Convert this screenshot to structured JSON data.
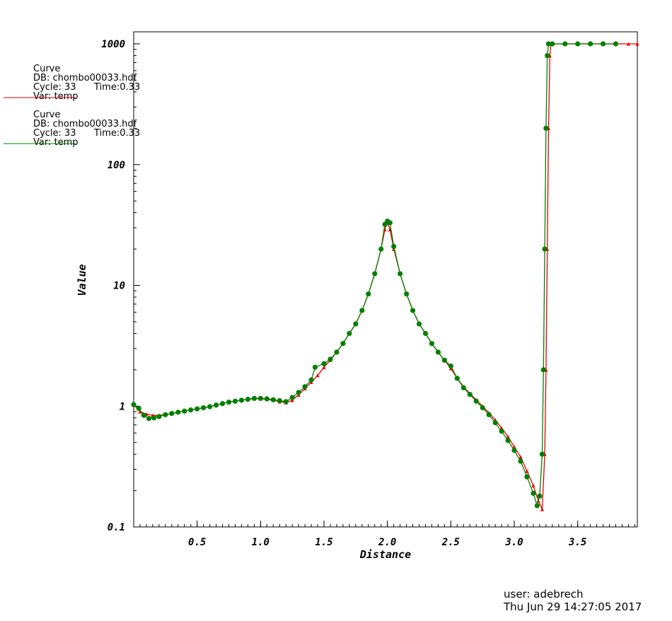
{
  "legend": [
    {
      "title": "Curve",
      "db": "DB: chombo00033.hdf",
      "cycle": "Cycle: 33",
      "time": "Time:0.33",
      "var": "Var: temp",
      "color": "#e60000"
    },
    {
      "title": "Curve",
      "db": "DB: chombo00033.hdf",
      "cycle": "Cycle: 33",
      "time": "Time:0.33",
      "var": "Var: temp",
      "color": "#008000"
    }
  ],
  "footer": {
    "user": "user: adebrech",
    "date": "Thu Jun 29 14:27:05 2017"
  },
  "chart_data": {
    "type": "line",
    "xlabel": "Distance",
    "ylabel": "Value",
    "x_scale": "linear",
    "y_scale": "log",
    "xlim": [
      0.0,
      3.97
    ],
    "ylim": [
      0.1,
      1200
    ],
    "x_ticks": [
      {
        "value": 0.5,
        "label": "0.5"
      },
      {
        "value": 1.0,
        "label": "1.0"
      },
      {
        "value": 1.5,
        "label": "1.5"
      },
      {
        "value": 2.0,
        "label": "2.0"
      },
      {
        "value": 2.5,
        "label": "2.5"
      },
      {
        "value": 3.0,
        "label": "3.0"
      },
      {
        "value": 3.5,
        "label": "3.5"
      }
    ],
    "y_ticks": [
      {
        "value": 0.1,
        "label": "0.1"
      },
      {
        "value": 1,
        "label": "1"
      },
      {
        "value": 10,
        "label": "10"
      },
      {
        "value": 100,
        "label": "100"
      },
      {
        "value": 1000,
        "label": "1000"
      }
    ],
    "series": [
      {
        "color": "#e60000",
        "marker": "triangle",
        "points": [
          [
            0.0,
            1.03
          ],
          [
            0.05,
            0.9
          ],
          [
            0.1,
            0.86
          ],
          [
            0.15,
            0.84
          ],
          [
            0.2,
            0.84
          ],
          [
            0.25,
            0.85
          ],
          [
            0.3,
            0.87
          ],
          [
            0.35,
            0.89
          ],
          [
            0.4,
            0.91
          ],
          [
            0.45,
            0.93
          ],
          [
            0.5,
            0.95
          ],
          [
            0.55,
            0.97
          ],
          [
            0.6,
            0.99
          ],
          [
            0.65,
            1.02
          ],
          [
            0.7,
            1.05
          ],
          [
            0.75,
            1.08
          ],
          [
            0.8,
            1.1
          ],
          [
            0.85,
            1.12
          ],
          [
            0.9,
            1.14
          ],
          [
            0.95,
            1.15
          ],
          [
            1.0,
            1.15
          ],
          [
            1.05,
            1.14
          ],
          [
            1.1,
            1.12
          ],
          [
            1.15,
            1.09
          ],
          [
            1.2,
            1.07
          ],
          [
            1.25,
            1.12
          ],
          [
            1.3,
            1.24
          ],
          [
            1.35,
            1.4
          ],
          [
            1.4,
            1.58
          ],
          [
            1.45,
            1.8
          ],
          [
            1.5,
            2.1
          ],
          [
            1.55,
            2.4
          ],
          [
            1.6,
            2.8
          ],
          [
            1.65,
            3.3
          ],
          [
            1.7,
            4.0
          ],
          [
            1.75,
            4.8
          ],
          [
            1.8,
            6.2
          ],
          [
            1.85,
            8.5
          ],
          [
            1.9,
            12.5
          ],
          [
            1.95,
            20
          ],
          [
            1.98,
            29
          ],
          [
            2.0,
            33
          ],
          [
            2.02,
            29
          ],
          [
            2.05,
            20
          ],
          [
            2.1,
            12.5
          ],
          [
            2.15,
            8.5
          ],
          [
            2.2,
            6.2
          ],
          [
            2.25,
            4.8
          ],
          [
            2.3,
            4.0
          ],
          [
            2.35,
            3.3
          ],
          [
            2.4,
            2.8
          ],
          [
            2.45,
            2.4
          ],
          [
            2.5,
            2.05
          ],
          [
            2.55,
            1.7
          ],
          [
            2.6,
            1.45
          ],
          [
            2.65,
            1.27
          ],
          [
            2.7,
            1.13
          ],
          [
            2.75,
            1.0
          ],
          [
            2.8,
            0.88
          ],
          [
            2.85,
            0.77
          ],
          [
            2.9,
            0.66
          ],
          [
            2.95,
            0.56
          ],
          [
            3.0,
            0.46
          ],
          [
            3.05,
            0.38
          ],
          [
            3.1,
            0.29
          ],
          [
            3.15,
            0.22
          ],
          [
            3.19,
            0.165
          ],
          [
            3.22,
            0.14
          ],
          [
            3.24,
            0.4
          ],
          [
            3.25,
            2
          ],
          [
            3.26,
            20
          ],
          [
            3.27,
            200
          ],
          [
            3.28,
            800
          ],
          [
            3.29,
            1000
          ],
          [
            3.3,
            1000
          ],
          [
            3.4,
            1000
          ],
          [
            3.5,
            1000
          ],
          [
            3.6,
            1000
          ],
          [
            3.7,
            1000
          ],
          [
            3.8,
            1000
          ],
          [
            3.9,
            1000
          ],
          [
            3.97,
            1000
          ]
        ]
      },
      {
        "color": "#008000",
        "marker": "circle",
        "points": [
          [
            0.0,
            1.03
          ],
          [
            0.04,
            0.96
          ],
          [
            0.08,
            0.84
          ],
          [
            0.12,
            0.79
          ],
          [
            0.16,
            0.8
          ],
          [
            0.2,
            0.82
          ],
          [
            0.25,
            0.85
          ],
          [
            0.3,
            0.87
          ],
          [
            0.35,
            0.89
          ],
          [
            0.4,
            0.91
          ],
          [
            0.45,
            0.93
          ],
          [
            0.5,
            0.95
          ],
          [
            0.55,
            0.97
          ],
          [
            0.6,
            0.99
          ],
          [
            0.65,
            1.02
          ],
          [
            0.7,
            1.05
          ],
          [
            0.75,
            1.08
          ],
          [
            0.8,
            1.1
          ],
          [
            0.85,
            1.12
          ],
          [
            0.9,
            1.14
          ],
          [
            0.95,
            1.16
          ],
          [
            1.0,
            1.16
          ],
          [
            1.05,
            1.15
          ],
          [
            1.1,
            1.13
          ],
          [
            1.15,
            1.11
          ],
          [
            1.2,
            1.09
          ],
          [
            1.25,
            1.18
          ],
          [
            1.3,
            1.3
          ],
          [
            1.35,
            1.45
          ],
          [
            1.4,
            1.65
          ],
          [
            1.43,
            2.1
          ],
          [
            1.5,
            2.25
          ],
          [
            1.55,
            2.45
          ],
          [
            1.6,
            2.8
          ],
          [
            1.65,
            3.3
          ],
          [
            1.7,
            4.0
          ],
          [
            1.75,
            4.8
          ],
          [
            1.8,
            6.2
          ],
          [
            1.85,
            8.5
          ],
          [
            1.9,
            12.5
          ],
          [
            1.95,
            20
          ],
          [
            1.98,
            32
          ],
          [
            2.0,
            34
          ],
          [
            2.02,
            33
          ],
          [
            2.05,
            21
          ],
          [
            2.1,
            12.5
          ],
          [
            2.15,
            8.5
          ],
          [
            2.2,
            6.2
          ],
          [
            2.25,
            4.8
          ],
          [
            2.3,
            4.0
          ],
          [
            2.35,
            3.3
          ],
          [
            2.4,
            2.8
          ],
          [
            2.45,
            2.4
          ],
          [
            2.5,
            2.15
          ],
          [
            2.55,
            1.7
          ],
          [
            2.6,
            1.42
          ],
          [
            2.65,
            1.25
          ],
          [
            2.7,
            1.1
          ],
          [
            2.75,
            0.97
          ],
          [
            2.8,
            0.85
          ],
          [
            2.85,
            0.73
          ],
          [
            2.9,
            0.62
          ],
          [
            2.95,
            0.52
          ],
          [
            3.0,
            0.43
          ],
          [
            3.05,
            0.35
          ],
          [
            3.1,
            0.26
          ],
          [
            3.15,
            0.19
          ],
          [
            3.18,
            0.15
          ],
          [
            3.2,
            0.18
          ],
          [
            3.22,
            0.4
          ],
          [
            3.23,
            2
          ],
          [
            3.24,
            20
          ],
          [
            3.25,
            200
          ],
          [
            3.26,
            800
          ],
          [
            3.27,
            1000
          ],
          [
            3.3,
            1000
          ],
          [
            3.4,
            1000
          ],
          [
            3.5,
            1000
          ],
          [
            3.6,
            1000
          ],
          [
            3.7,
            1000
          ],
          [
            3.8,
            1000
          ]
        ]
      }
    ]
  }
}
